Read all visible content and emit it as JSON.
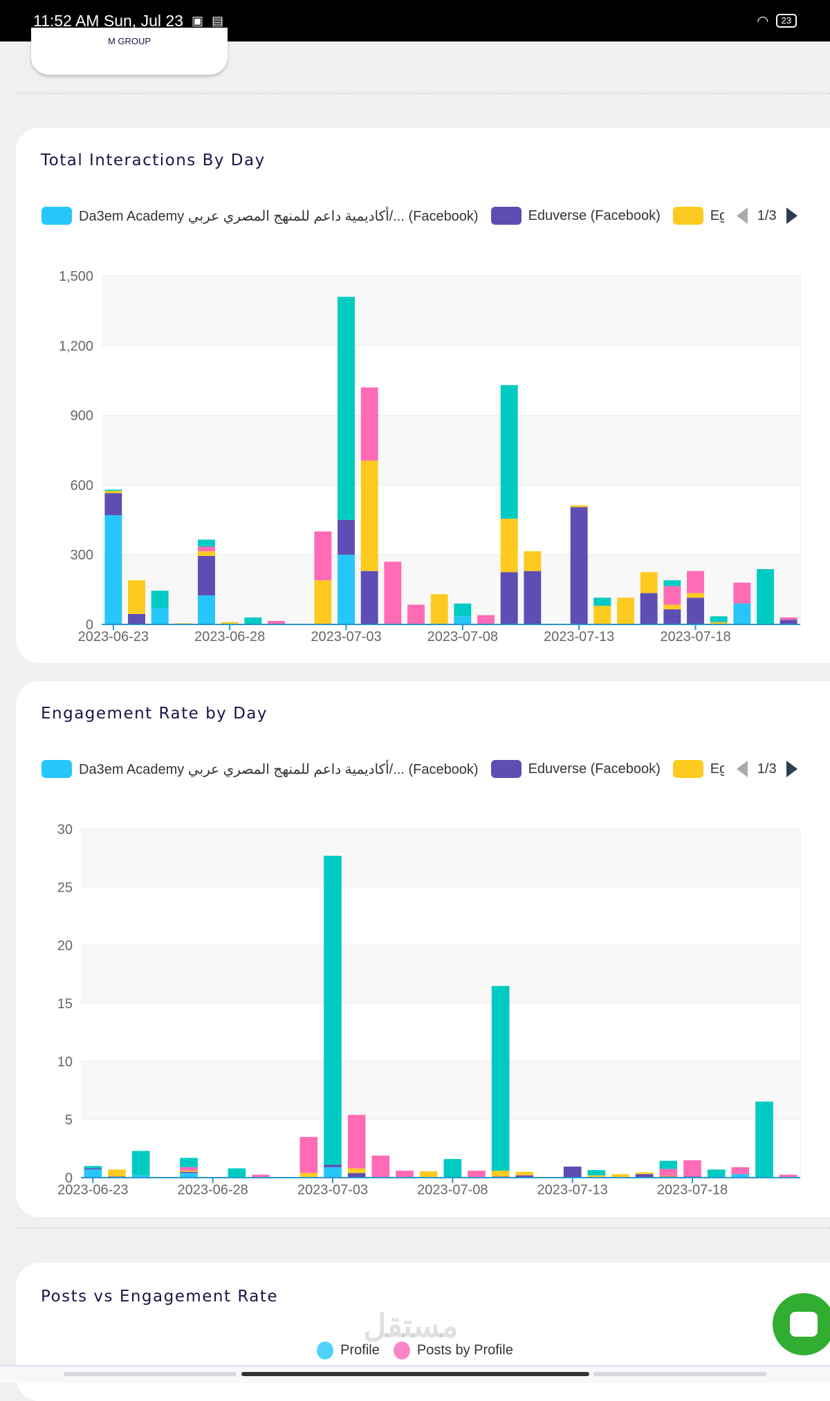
{
  "status_bar": {
    "time": "11:52 AM Sun, Jul 23",
    "battery": "23",
    "icons": [
      "facebook-icon",
      "calendar-icon",
      "wifi-icon",
      "battery-icon"
    ]
  },
  "top_card": {
    "label": "M GROUP"
  },
  "legend_items": [
    {
      "label": "Da3em Academy أكاديمية داعم للمنهج المصري عربي/... (Facebook)",
      "color": "#26c6fa"
    },
    {
      "label": "Eduverse (Facebook)",
      "color": "#5e4db2"
    },
    {
      "label": "Eg",
      "color": "#fdcb1f"
    }
  ],
  "pager": "1/3",
  "colors": [
    "#26c6fa",
    "#5e4db2",
    "#fdcb1f",
    "#ff6bb5",
    "#00cbc3"
  ],
  "chart_data": [
    {
      "type": "bar",
      "stacked": true,
      "title": "Total Interactions By Day",
      "x_ticks": [
        "2023-06-23",
        "2023-06-28",
        "2023-07-03",
        "2023-07-08",
        "2023-07-13",
        "2023-07-18"
      ],
      "y_ticks": [
        "0",
        "300",
        "600",
        "900",
        "1,200",
        "1,500"
      ],
      "ylim": [
        0,
        1500
      ],
      "categories": [
        "2023-06-23",
        "2023-06-24",
        "2023-06-25",
        "2023-06-26",
        "2023-06-27",
        "2023-06-28",
        "2023-06-29",
        "2023-06-30",
        "2023-07-01",
        "2023-07-02",
        "2023-07-03",
        "2023-07-04",
        "2023-07-05",
        "2023-07-06",
        "2023-07-07",
        "2023-07-08",
        "2023-07-09",
        "2023-07-10",
        "2023-07-11",
        "2023-07-12",
        "2023-07-13",
        "2023-07-14",
        "2023-07-15",
        "2023-07-16",
        "2023-07-17",
        "2023-07-18",
        "2023-07-19",
        "2023-07-20",
        "2023-07-21",
        "2023-07-22"
      ],
      "series": [
        {
          "name": "Da3em Academy أكاديمية داعم للمنهج المصري عربي/... (Facebook)",
          "values": [
            470,
            0,
            70,
            0,
            125,
            0,
            0,
            0,
            0,
            0,
            300,
            0,
            0,
            0,
            0,
            35,
            0,
            0,
            0,
            0,
            0,
            0,
            0,
            0,
            0,
            0,
            0,
            90,
            0,
            0
          ]
        },
        {
          "name": "Eduverse (Facebook)",
          "values": [
            95,
            45,
            0,
            0,
            170,
            0,
            0,
            0,
            0,
            0,
            150,
            230,
            0,
            0,
            0,
            0,
            0,
            225,
            230,
            0,
            505,
            0,
            0,
            135,
            65,
            115,
            0,
            0,
            3,
            20
          ]
        },
        {
          "name": "Eg",
          "values": [
            10,
            145,
            0,
            5,
            20,
            10,
            0,
            0,
            0,
            190,
            0,
            475,
            0,
            0,
            130,
            0,
            0,
            230,
            85,
            0,
            8,
            80,
            115,
            90,
            20,
            20,
            10,
            0,
            0,
            0
          ]
        },
        {
          "values": [
            0,
            0,
            0,
            0,
            20,
            0,
            0,
            15,
            0,
            210,
            0,
            315,
            270,
            85,
            0,
            0,
            40,
            0,
            0,
            0,
            0,
            0,
            0,
            0,
            80,
            95,
            0,
            90,
            0,
            10
          ]
        },
        {
          "values": [
            5,
            0,
            75,
            0,
            30,
            0,
            30,
            0,
            0,
            0,
            960,
            0,
            0,
            0,
            0,
            55,
            0,
            575,
            0,
            0,
            0,
            35,
            0,
            0,
            25,
            0,
            25,
            0,
            235,
            0
          ]
        }
      ]
    },
    {
      "type": "bar",
      "stacked": true,
      "title": "Engagement Rate by Day",
      "x_ticks": [
        "2023-06-23",
        "2023-06-28",
        "2023-07-03",
        "2023-07-08",
        "2023-07-13",
        "2023-07-18"
      ],
      "y_ticks": [
        "0",
        "5",
        "10",
        "15",
        "20",
        "25",
        "30"
      ],
      "ylim": [
        0,
        30
      ],
      "categories": [
        "2023-06-23",
        "2023-06-24",
        "2023-06-25",
        "2023-06-26",
        "2023-06-27",
        "2023-06-28",
        "2023-06-29",
        "2023-06-30",
        "2023-07-01",
        "2023-07-02",
        "2023-07-03",
        "2023-07-04",
        "2023-07-05",
        "2023-07-06",
        "2023-07-07",
        "2023-07-08",
        "2023-07-09",
        "2023-07-10",
        "2023-07-11",
        "2023-07-12",
        "2023-07-13",
        "2023-07-14",
        "2023-07-15",
        "2023-07-16",
        "2023-07-17",
        "2023-07-18",
        "2023-07-19",
        "2023-07-20",
        "2023-07-21",
        "2023-07-22"
      ],
      "series": [
        {
          "name": "Da3em Academy أكاديمية داعم للمنهج المصري عربي/... (Facebook)",
          "values": [
            0.7,
            0,
            0.2,
            0,
            0.4,
            0,
            0,
            0,
            0,
            0,
            0.9,
            0,
            0,
            0,
            0,
            0.05,
            0,
            0,
            0,
            0,
            0,
            0,
            0,
            0,
            0,
            0,
            0,
            0.3,
            0,
            0
          ]
        },
        {
          "name": "Eduverse (Facebook)",
          "values": [
            0.1,
            0.1,
            0,
            0,
            0.1,
            0,
            0,
            0,
            0,
            0,
            0.2,
            0.4,
            0,
            0,
            0,
            0,
            0,
            0.1,
            0.2,
            0,
            0.95,
            0,
            0,
            0.3,
            0.1,
            0.1,
            0,
            0,
            0.05,
            0
          ]
        },
        {
          "name": "Eg",
          "values": [
            0,
            0.6,
            0,
            0,
            0.1,
            0.05,
            0,
            0,
            0,
            0.4,
            0,
            0.4,
            0,
            0,
            0.55,
            0,
            0,
            0.5,
            0.3,
            0,
            0,
            0.2,
            0.3,
            0.15,
            0.05,
            0,
            0,
            0,
            0,
            0
          ]
        },
        {
          "values": [
            0,
            0,
            0,
            0,
            0.3,
            0,
            0,
            0.25,
            0,
            3.1,
            0,
            4.6,
            1.9,
            0.6,
            0,
            0,
            0.6,
            0,
            0,
            0,
            0,
            0,
            0,
            0,
            0.6,
            1.4,
            0,
            0.6,
            0,
            0.25
          ]
        },
        {
          "values": [
            0.2,
            0,
            2.1,
            0,
            0.8,
            0,
            0.8,
            0,
            0,
            0,
            26.6,
            0,
            0,
            0,
            0,
            1.55,
            0,
            15.9,
            0,
            0,
            0,
            0.45,
            0,
            0,
            0.7,
            0,
            0.7,
            0,
            6.5,
            0
          ]
        }
      ]
    }
  ],
  "card3": {
    "title": "Posts vs Engagement Rate",
    "legend": [
      {
        "label": "Profile",
        "color": "#4fd3fb"
      },
      {
        "label": "Posts by Profile",
        "color": "#fb86c6"
      }
    ]
  },
  "watermark": "مستقل"
}
